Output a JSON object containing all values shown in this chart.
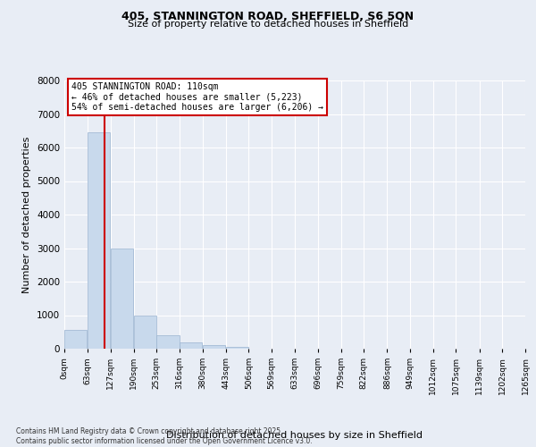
{
  "title1": "405, STANNINGTON ROAD, SHEFFIELD, S6 5QN",
  "title2": "Size of property relative to detached houses in Sheffield",
  "xlabel": "Distribution of detached houses by size in Sheffield",
  "ylabel": "Number of detached properties",
  "bar_color": "#c8d9ec",
  "bar_edge_color": "#9ab4d0",
  "bg_color": "#e8edf5",
  "grid_color": "#ffffff",
  "vline_color": "#cc0000",
  "vline_x": 110,
  "annotation_title": "405 STANNINGTON ROAD: 110sqm",
  "annotation_line1": "← 46% of detached houses are smaller (5,223)",
  "annotation_line2": "54% of semi-detached houses are larger (6,206) →",
  "annotation_box_color": "#cc0000",
  "footer1": "Contains HM Land Registry data © Crown copyright and database right 2025.",
  "footer2": "Contains public sector information licensed under the Open Government Licence v3.0.",
  "bin_edges": [
    0,
    63,
    127,
    190,
    253,
    316,
    380,
    443,
    506,
    569,
    633,
    696,
    759,
    822,
    886,
    949,
    1012,
    1075,
    1139,
    1202,
    1265
  ],
  "bin_labels": [
    "0sqm",
    "63sqm",
    "127sqm",
    "190sqm",
    "253sqm",
    "316sqm",
    "380sqm",
    "443sqm",
    "506sqm",
    "569sqm",
    "633sqm",
    "696sqm",
    "759sqm",
    "822sqm",
    "886sqm",
    "949sqm",
    "1012sqm",
    "1075sqm",
    "1139sqm",
    "1202sqm",
    "1265sqm"
  ],
  "counts": [
    550,
    6450,
    3000,
    980,
    390,
    175,
    120,
    60,
    0,
    0,
    0,
    0,
    0,
    0,
    0,
    0,
    0,
    0,
    0,
    0
  ],
  "ylim": [
    0,
    8000
  ],
  "yticks": [
    0,
    1000,
    2000,
    3000,
    4000,
    5000,
    6000,
    7000,
    8000
  ]
}
